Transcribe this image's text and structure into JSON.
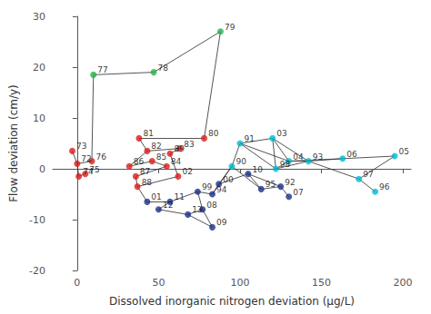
{
  "chart_data": {
    "type": "scatter",
    "xlabel": "Dissolved inorganic nitrogen deviation (μg/L)",
    "ylabel": "Flow deviation (cm/y)",
    "xlim": [
      -15,
      205
    ],
    "ylim": [
      -20,
      30
    ],
    "xticks": [
      0,
      50,
      100,
      150,
      200
    ],
    "yticks": [
      -20,
      -10,
      0,
      10,
      20,
      30
    ],
    "grid": false,
    "points": [
      {
        "label": "72",
        "x": 0,
        "y": 1.0,
        "color": "#dd1c1c"
      },
      {
        "label": "73",
        "x": -3,
        "y": 3.5,
        "color": "#dd1c1c"
      },
      {
        "label": "74",
        "x": 1,
        "y": -1.5,
        "color": "#dd1c1c"
      },
      {
        "label": "75",
        "x": 5,
        "y": -1.0,
        "color": "#dd1c1c"
      },
      {
        "label": "76",
        "x": 9,
        "y": 1.5,
        "color": "#dd1c1c"
      },
      {
        "label": "77",
        "x": 10,
        "y": 18.5,
        "color": "#22b14c"
      },
      {
        "label": "78",
        "x": 47,
        "y": 19.0,
        "color": "#22b14c"
      },
      {
        "label": "79",
        "x": 88,
        "y": 27.0,
        "color": "#22b14c"
      },
      {
        "label": "80",
        "x": 78,
        "y": 6.0,
        "color": "#dd1c1c"
      },
      {
        "label": "81",
        "x": 38,
        "y": 6.0,
        "color": "#dd1c1c"
      },
      {
        "label": "82",
        "x": 43,
        "y": 3.5,
        "color": "#dd1c1c"
      },
      {
        "label": "83",
        "x": 63,
        "y": 4.0,
        "color": "#dd1c1c"
      },
      {
        "label": "84",
        "x": 55,
        "y": 0.5,
        "color": "#dd1c1c"
      },
      {
        "label": "85",
        "x": 46,
        "y": 1.5,
        "color": "#dd1c1c"
      },
      {
        "label": "86",
        "x": 32,
        "y": 0.5,
        "color": "#dd1c1c"
      },
      {
        "label": "87",
        "x": 36,
        "y": -1.5,
        "color": "#dd1c1c"
      },
      {
        "label": "88",
        "x": 37,
        "y": -3.5,
        "color": "#dd1c1c"
      },
      {
        "label": "89",
        "x": 57,
        "y": 3.0,
        "color": "#dd1c1c"
      },
      {
        "label": "02",
        "x": 62,
        "y": -1.5,
        "color": "#dd1c1c"
      },
      {
        "label": "01",
        "x": 43,
        "y": -6.5,
        "color": "#1b2f8a"
      },
      {
        "label": "12",
        "x": 50,
        "y": -8.0,
        "color": "#1b2f8a"
      },
      {
        "label": "13",
        "x": 68,
        "y": -9.0,
        "color": "#1b2f8a"
      },
      {
        "label": "09",
        "x": 83,
        "y": -11.5,
        "color": "#1b2f8a"
      },
      {
        "label": "08",
        "x": 77,
        "y": -8.0,
        "color": "#1b2f8a"
      },
      {
        "label": "11",
        "x": 57,
        "y": -6.5,
        "color": "#1b2f8a"
      },
      {
        "label": "99",
        "x": 74,
        "y": -4.5,
        "color": "#1b2f8a"
      },
      {
        "label": "94",
        "x": 83,
        "y": -5.0,
        "color": "#1b2f8a"
      },
      {
        "label": "00",
        "x": 87,
        "y": -3.0,
        "color": "#1b2f8a"
      },
      {
        "label": "10",
        "x": 105,
        "y": -1.0,
        "color": "#1b2f8a"
      },
      {
        "label": "07",
        "x": 130,
        "y": -5.5,
        "color": "#1b2f8a"
      },
      {
        "label": "95",
        "x": 113,
        "y": -4.0,
        "color": "#1b2f8a"
      },
      {
        "label": "92",
        "x": 125,
        "y": -3.5,
        "color": "#1b2f8a"
      },
      {
        "label": "91",
        "x": 100,
        "y": 5.0,
        "color": "#00bcd4"
      },
      {
        "label": "90",
        "x": 95,
        "y": 0.5,
        "color": "#00bcd4"
      },
      {
        "label": "03",
        "x": 120,
        "y": 6.0,
        "color": "#00bcd4"
      },
      {
        "label": "04",
        "x": 130,
        "y": 1.5,
        "color": "#00bcd4"
      },
      {
        "label": "93",
        "x": 142,
        "y": 1.5,
        "color": "#00bcd4"
      },
      {
        "label": "98",
        "x": 122,
        "y": 0.0,
        "color": "#00bcd4"
      },
      {
        "label": "06",
        "x": 163,
        "y": 2.0,
        "color": "#00bcd4"
      },
      {
        "label": "05",
        "x": 195,
        "y": 2.5,
        "color": "#00bcd4"
      },
      {
        "label": "97",
        "x": 173,
        "y": -2.0,
        "color": "#00bcd4"
      },
      {
        "label": "96",
        "x": 183,
        "y": -4.5,
        "color": "#00bcd4"
      }
    ],
    "edges": [
      [
        "73",
        "72"
      ],
      [
        "72",
        "76"
      ],
      [
        "72",
        "74"
      ],
      [
        "74",
        "75"
      ],
      [
        "76",
        "77"
      ],
      [
        "77",
        "78"
      ],
      [
        "78",
        "79"
      ],
      [
        "79",
        "80"
      ],
      [
        "80",
        "81"
      ],
      [
        "81",
        "82"
      ],
      [
        "82",
        "86"
      ],
      [
        "82",
        "83"
      ],
      [
        "83",
        "89"
      ],
      [
        "86",
        "85"
      ],
      [
        "85",
        "84"
      ],
      [
        "84",
        "87"
      ],
      [
        "87",
        "88"
      ],
      [
        "88",
        "02"
      ],
      [
        "02",
        "89"
      ],
      [
        "88",
        "01"
      ],
      [
        "01",
        "11"
      ],
      [
        "11",
        "12"
      ],
      [
        "12",
        "13"
      ],
      [
        "13",
        "08"
      ],
      [
        "08",
        "09"
      ],
      [
        "09",
        "13"
      ],
      [
        "08",
        "99"
      ],
      [
        "99",
        "94"
      ],
      [
        "94",
        "00"
      ],
      [
        "00",
        "10"
      ],
      [
        "10",
        "95"
      ],
      [
        "95",
        "92"
      ],
      [
        "92",
        "07"
      ],
      [
        "91",
        "90"
      ],
      [
        "90",
        "00"
      ],
      [
        "91",
        "03"
      ],
      [
        "03",
        "98"
      ],
      [
        "98",
        "04"
      ],
      [
        "04",
        "93"
      ],
      [
        "93",
        "06"
      ],
      [
        "06",
        "05"
      ],
      [
        "05",
        "97"
      ],
      [
        "97",
        "96"
      ],
      [
        "91",
        "98"
      ],
      [
        "90",
        "95"
      ],
      [
        "03",
        "04"
      ],
      [
        "10",
        "92"
      ],
      [
        "98",
        "93"
      ],
      [
        "04",
        "06"
      ],
      [
        "93",
        "97"
      ],
      [
        "91",
        "04"
      ],
      [
        "03",
        "93"
      ],
      [
        "90",
        "94"
      ],
      [
        "99",
        "11"
      ]
    ]
  }
}
